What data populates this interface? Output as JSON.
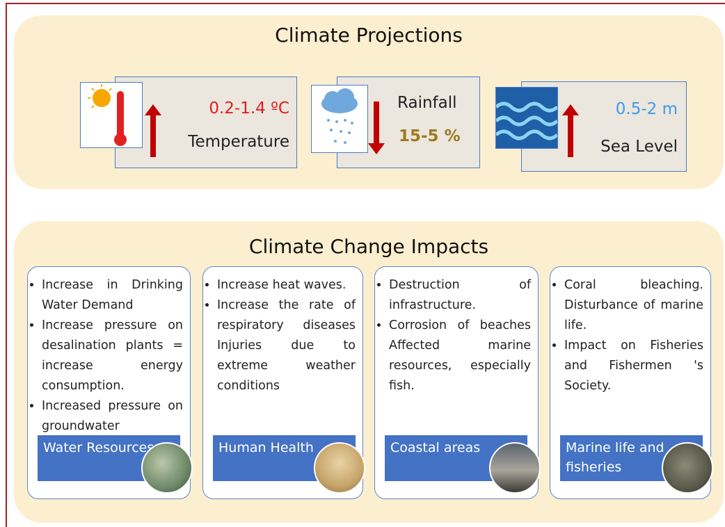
{
  "projections": {
    "title": "Climate Projections",
    "items": [
      {
        "value": "0.2-1.4 ºC",
        "label": "Temperature"
      },
      {
        "label": "Rainfall",
        "value": "15-5 %"
      },
      {
        "value": "0.5-2 m",
        "label": "Sea Level"
      }
    ]
  },
  "impacts": {
    "title": "Climate Change Impacts",
    "cards": [
      {
        "bullets": [
          "Increase in Drinking Water Demand",
          "Increase pressure on desalination plants = increase energy consumption.",
          "Increased pressure on groundwater"
        ],
        "label": "Water Resources"
      },
      {
        "bullets": [
          "Increase heat waves.",
          "Increase the rate of respiratory diseases Injuries due to extreme weather conditions"
        ],
        "label": "Human Health"
      },
      {
        "bullets": [
          "Destruction of infrastructure.",
          "Corrosion of beaches Affected marine resources, especially fish."
        ],
        "label": "Coastal areas"
      },
      {
        "bullets": [
          "Coral bleaching. Disturbance of marine life.",
          "Impact on Fisheries and Fishermen 's Society."
        ],
        "label": "Marine life and fisheries"
      }
    ]
  }
}
